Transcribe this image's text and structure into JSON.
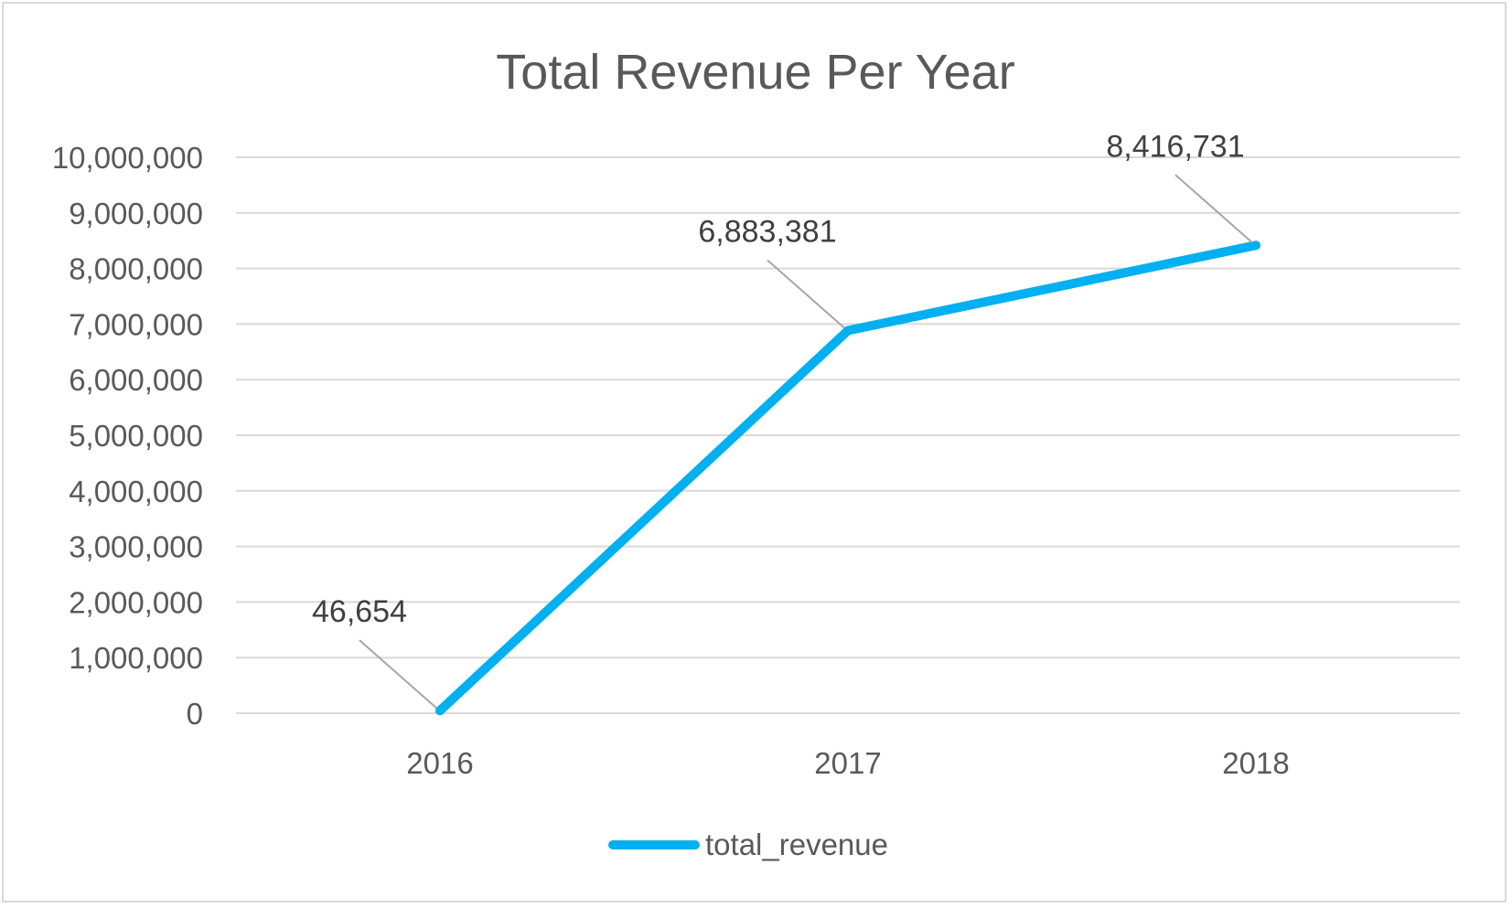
{
  "chart_data": {
    "type": "line",
    "title": "Total Revenue Per Year",
    "categories": [
      "2016",
      "2017",
      "2018"
    ],
    "series": [
      {
        "name": "total_revenue",
        "values": [
          46654,
          6883381,
          8416731
        ],
        "data_labels": [
          "46,654",
          "6,883,381",
          "8,416,731"
        ],
        "color": "#00b0f0"
      }
    ],
    "ylim": [
      0,
      10000000
    ],
    "yticks": [
      0,
      1000000,
      2000000,
      3000000,
      4000000,
      5000000,
      6000000,
      7000000,
      8000000,
      9000000,
      10000000
    ],
    "ytick_labels": [
      "0",
      "1,000,000",
      "2,000,000",
      "3,000,000",
      "4,000,000",
      "5,000,000",
      "6,000,000",
      "7,000,000",
      "8,000,000",
      "9,000,000",
      "10,000,000"
    ],
    "grid": true,
    "legend_position": "bottom",
    "colors": {
      "gridline": "#d9d9d9",
      "leader_line": "#a6a6a6",
      "text": "#595959"
    }
  }
}
